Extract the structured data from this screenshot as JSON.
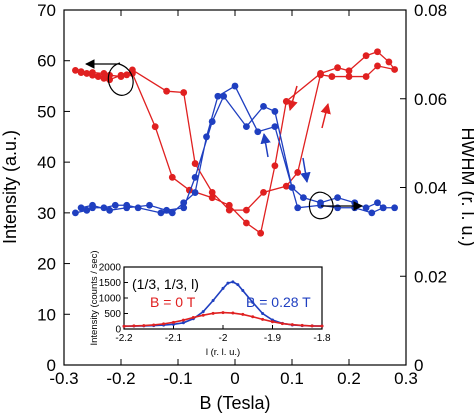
{
  "chart_data": [
    {
      "type": "line",
      "xlabel": "B (Tesla)",
      "ylabel": "Intensity (a.u.)",
      "y2label": "HWHM (r. l. u.)",
      "xlim": [
        -0.3,
        0.3
      ],
      "ylim": [
        0,
        70
      ],
      "y2lim": [
        0,
        0.08
      ],
      "x_ticks": [
        "-0.3",
        "-0.2",
        "-0.1",
        "0",
        "0.1",
        "0.2",
        "0.3"
      ],
      "y_ticks": [
        "0",
        "10",
        "20",
        "30",
        "40",
        "50",
        "60",
        "70"
      ],
      "y2_ticks": [
        "0",
        "0.02",
        "0.04",
        "0.06",
        "0.08"
      ],
      "series": [
        {
          "color": "#e02020",
          "axis": "right",
          "points": [
            [
              -0.28,
              0.0664
            ],
            [
              -0.27,
              0.0659
            ],
            [
              -0.26,
              0.0657
            ],
            [
              -0.25,
              0.0653
            ],
            [
              -0.24,
              0.065
            ],
            [
              -0.23,
              0.0646
            ],
            [
              -0.22,
              0.0653
            ],
            [
              -0.2,
              0.065
            ],
            [
              -0.19,
              0.0654
            ],
            [
              -0.18,
              0.0665
            ],
            [
              -0.12,
              0.0617
            ],
            [
              -0.09,
              0.0614
            ],
            [
              -0.07,
              0.0454
            ],
            [
              -0.04,
              0.0389
            ],
            [
              -0.01,
              0.0349
            ],
            [
              0.02,
              0.0349
            ],
            [
              0.05,
              0.0389
            ],
            [
              0.09,
              0.0403
            ],
            [
              0.11,
              0.0434
            ],
            [
              0.15,
              0.0654
            ],
            [
              0.17,
              0.065
            ],
            [
              0.2,
              0.065
            ],
            [
              0.23,
              0.065
            ],
            [
              0.25,
              0.0674
            ],
            [
              0.28,
              0.0666
            ],
            [
              0.27,
              0.0683
            ],
            [
              0.25,
              0.0706
            ],
            [
              0.23,
              0.0697
            ],
            [
              0.2,
              0.0663
            ],
            [
              0.18,
              0.067
            ],
            [
              0.15,
              0.0657
            ],
            [
              0.09,
              0.0594
            ],
            [
              0.07,
              0.0449
            ],
            [
              0.045,
              0.0297
            ],
            [
              0.02,
              0.032
            ],
            [
              -0.01,
              0.036
            ],
            [
              -0.04,
              0.0377
            ],
            [
              -0.08,
              0.0394
            ],
            [
              -0.11,
              0.0423
            ],
            [
              -0.14,
              0.0537
            ],
            [
              -0.18,
              0.0657
            ],
            [
              -0.2,
              0.0653
            ],
            [
              -0.22,
              0.0643
            ],
            [
              -0.23,
              0.0657
            ],
            [
              -0.25,
              0.0659
            ],
            [
              -0.27,
              0.0661
            ]
          ]
        },
        {
          "color": "#1f3fc0",
          "axis": "left",
          "points": [
            [
              -0.28,
              30.0
            ],
            [
              -0.26,
              30.5
            ],
            [
              -0.25,
              31.0
            ],
            [
              -0.23,
              31.0
            ],
            [
              -0.21,
              31.5
            ],
            [
              -0.19,
              31.5
            ],
            [
              -0.17,
              31.0
            ],
            [
              -0.13,
              30.0
            ],
            [
              -0.11,
              30.0
            ],
            [
              -0.09,
              32.0
            ],
            [
              -0.07,
              34.0
            ],
            [
              -0.05,
              45.0
            ],
            [
              -0.03,
              53.0
            ],
            [
              0.0,
              55.0
            ],
            [
              0.04,
              46.0
            ],
            [
              0.07,
              47.0
            ],
            [
              0.11,
              31.0
            ],
            [
              0.15,
              31.5
            ],
            [
              0.18,
              31.0
            ],
            [
              0.21,
              31.0
            ],
            [
              0.24,
              30.0
            ],
            [
              0.26,
              31.0
            ],
            [
              0.28,
              31.0
            ],
            [
              0.26,
              31.0
            ],
            [
              0.25,
              32.0
            ],
            [
              0.23,
              31.0
            ],
            [
              0.21,
              32.0
            ],
            [
              0.18,
              33.0
            ],
            [
              0.15,
              32.0
            ],
            [
              0.12,
              33.0
            ],
            [
              0.1,
              35.0
            ],
            [
              0.07,
              50.0
            ],
            [
              0.05,
              51.0
            ],
            [
              0.02,
              47.0
            ],
            [
              -0.02,
              53.0
            ],
            [
              -0.04,
              48.0
            ],
            [
              -0.07,
              37.0
            ],
            [
              -0.09,
              31.0
            ],
            [
              -0.12,
              30.5
            ],
            [
              -0.15,
              31.5
            ],
            [
              -0.19,
              31.0
            ],
            [
              -0.22,
              30.5
            ],
            [
              -0.25,
              31.5
            ],
            [
              -0.27,
              31.0
            ]
          ]
        }
      ],
      "annotations": [
        {
          "text": "",
          "note": "curved arrows and direction arrows indicating field sweep and axis assignment"
        }
      ]
    },
    {
      "type": "line",
      "xlabel": "l (r. l. u.)",
      "ylabel": "Intensity (counts / sec)",
      "xlim": [
        -2.2,
        -1.8
      ],
      "ylim": [
        0,
        2000
      ],
      "x_ticks": [
        "-2.2",
        "-2.1",
        "-2",
        "-1.9",
        "-1.8"
      ],
      "y_ticks": [
        "0",
        "500",
        "1000",
        "1500",
        "2000"
      ],
      "annotation_main": "(1/3, 1/3, l)",
      "series": [
        {
          "name": "B = 0.28 T",
          "color": "#1f3fc0",
          "points": [
            [
              -2.2,
              90
            ],
            [
              -2.18,
              95
            ],
            [
              -2.16,
              100
            ],
            [
              -2.14,
              110
            ],
            [
              -2.12,
              125
            ],
            [
              -2.1,
              150
            ],
            [
              -2.08,
              200
            ],
            [
              -2.06,
              330
            ],
            [
              -2.04,
              560
            ],
            [
              -2.02,
              920
            ],
            [
              -2.0,
              1310
            ],
            [
              -1.99,
              1480
            ],
            [
              -1.98,
              1520
            ],
            [
              -1.97,
              1430
            ],
            [
              -1.96,
              1240
            ],
            [
              -1.94,
              860
            ],
            [
              -1.92,
              500
            ],
            [
              -1.9,
              290
            ],
            [
              -1.88,
              180
            ],
            [
              -1.86,
              130
            ],
            [
              -1.84,
              110
            ],
            [
              -1.82,
              100
            ],
            [
              -1.8,
              95
            ]
          ]
        },
        {
          "name": "B = 0 T",
          "color": "#e02020",
          "points": [
            [
              -2.2,
              90
            ],
            [
              -2.18,
              100
            ],
            [
              -2.16,
              110
            ],
            [
              -2.14,
              130
            ],
            [
              -2.12,
              165
            ],
            [
              -2.1,
              215
            ],
            [
              -2.08,
              285
            ],
            [
              -2.06,
              370
            ],
            [
              -2.04,
              445
            ],
            [
              -2.02,
              505
            ],
            [
              -2.0,
              530
            ],
            [
              -1.98,
              515
            ],
            [
              -1.96,
              470
            ],
            [
              -1.94,
              395
            ],
            [
              -1.92,
              310
            ],
            [
              -1.9,
              235
            ],
            [
              -1.88,
              175
            ],
            [
              -1.86,
              140
            ],
            [
              -1.84,
              115
            ],
            [
              -1.82,
              100
            ],
            [
              -1.8,
              95
            ]
          ]
        }
      ]
    }
  ]
}
